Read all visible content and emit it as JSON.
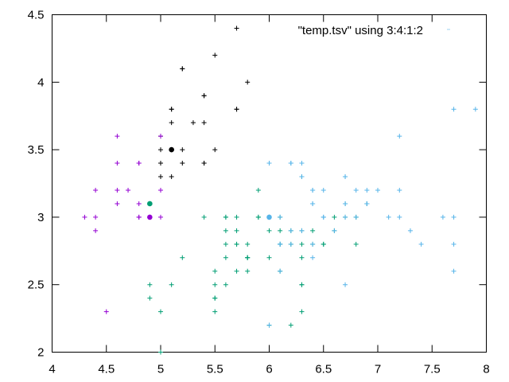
{
  "chart_data": {
    "type": "scatter",
    "xlim": [
      4,
      8
    ],
    "ylim": [
      2,
      4.5
    ],
    "x_ticks": [
      "4",
      "4.5",
      "5",
      "5.5",
      "6",
      "6.5",
      "7",
      "7.5",
      "8"
    ],
    "y_ticks": [
      "2",
      "2.5",
      "3",
      "3.5",
      "4",
      "4.5"
    ],
    "legend": {
      "label": "\"temp.tsv\" using 3:4:1:2",
      "placement": "top-right"
    },
    "grid": false,
    "marker": "plus",
    "series": [
      {
        "color": "#000000",
        "points": [
          [
            5.1,
            3.5
          ],
          [
            5.4,
            3.9
          ],
          [
            5.8,
            4.0
          ],
          [
            5.7,
            4.4
          ],
          [
            5.4,
            3.9
          ],
          [
            5.1,
            3.5
          ],
          [
            5.7,
            3.8
          ],
          [
            5.1,
            3.8
          ],
          [
            5.4,
            3.4
          ],
          [
            5.1,
            3.7
          ],
          [
            5.0,
            3.6
          ],
          [
            5.0,
            3.4
          ],
          [
            5.2,
            3.5
          ],
          [
            5.2,
            3.4
          ],
          [
            5.4,
            3.4
          ],
          [
            5.2,
            4.1
          ],
          [
            5.5,
            4.2
          ],
          [
            5.0,
            3.5
          ],
          [
            5.1,
            3.8
          ],
          [
            5.1,
            3.3
          ],
          [
            5.3,
            3.7
          ],
          [
            5.0,
            3.3
          ],
          [
            5.5,
            3.5
          ],
          [
            5.2,
            4.1
          ],
          [
            5.4,
            3.7
          ],
          [
            5.7,
            3.8
          ],
          [
            5.0,
            3.3
          ]
        ]
      },
      {
        "color": "#9400d3",
        "points": [
          [
            4.9,
            3.0
          ],
          [
            4.7,
            3.2
          ],
          [
            4.6,
            3.1
          ],
          [
            5.0,
            3.6
          ],
          [
            4.6,
            3.4
          ],
          [
            4.4,
            2.9
          ],
          [
            4.9,
            3.1
          ],
          [
            4.8,
            3.4
          ],
          [
            4.8,
            3.0
          ],
          [
            4.3,
            3.0
          ],
          [
            4.6,
            3.2
          ],
          [
            4.4,
            3.2
          ],
          [
            4.8,
            3.1
          ],
          [
            5.0,
            3.2
          ],
          [
            4.4,
            3.0
          ],
          [
            4.5,
            2.3
          ],
          [
            5.0,
            3.0
          ],
          [
            4.8,
            3.0
          ],
          [
            4.6,
            3.6
          ],
          [
            5.0,
            3.2
          ],
          [
            4.8,
            3.4
          ],
          [
            4.9,
            3.1
          ]
        ]
      },
      {
        "color": "#009e73",
        "points": [
          [
            5.5,
            2.3
          ],
          [
            6.5,
            2.8
          ],
          [
            5.7,
            2.8
          ],
          [
            6.3,
            3.3
          ],
          [
            4.9,
            2.4
          ],
          [
            6.6,
            2.9
          ],
          [
            5.2,
            2.7
          ],
          [
            5.0,
            2.0
          ],
          [
            5.9,
            3.0
          ],
          [
            6.0,
            2.2
          ],
          [
            6.1,
            2.9
          ],
          [
            5.6,
            2.9
          ],
          [
            6.7,
            3.1
          ],
          [
            5.6,
            3.0
          ],
          [
            5.8,
            2.7
          ],
          [
            6.2,
            2.2
          ],
          [
            5.6,
            2.5
          ],
          [
            5.9,
            3.2
          ],
          [
            6.1,
            2.8
          ],
          [
            6.3,
            2.5
          ],
          [
            6.1,
            2.8
          ],
          [
            6.4,
            2.9
          ],
          [
            6.6,
            3.0
          ],
          [
            6.8,
            2.8
          ],
          [
            6.7,
            3.0
          ],
          [
            6.0,
            2.9
          ],
          [
            5.7,
            2.6
          ],
          [
            5.5,
            2.4
          ],
          [
            5.5,
            2.4
          ],
          [
            5.8,
            2.7
          ],
          [
            6.0,
            2.7
          ],
          [
            5.4,
            3.0
          ],
          [
            6.0,
            3.4
          ],
          [
            6.7,
            3.1
          ],
          [
            6.3,
            2.3
          ],
          [
            5.6,
            3.0
          ],
          [
            5.5,
            2.5
          ],
          [
            5.5,
            2.6
          ],
          [
            6.1,
            3.0
          ],
          [
            5.8,
            2.6
          ],
          [
            5.0,
            2.3
          ],
          [
            5.6,
            2.7
          ],
          [
            5.7,
            3.0
          ],
          [
            5.7,
            2.9
          ],
          [
            6.2,
            2.9
          ],
          [
            5.1,
            2.5
          ],
          [
            5.7,
            2.8
          ],
          [
            4.9,
            2.5
          ],
          [
            6.3,
            2.7
          ],
          [
            6.5,
            2.8
          ],
          [
            6.3,
            2.9
          ],
          [
            5.8,
            2.7
          ],
          [
            6.0,
            2.2
          ],
          [
            6.9,
            3.1
          ],
          [
            5.6,
            2.8
          ],
          [
            6.3,
            2.5
          ],
          [
            6.2,
            2.8
          ],
          [
            6.4,
            2.8
          ],
          [
            6.8,
            3.0
          ],
          [
            5.8,
            2.8
          ],
          [
            6.3,
            2.8
          ],
          [
            6.1,
            2.6
          ],
          [
            6.0,
            3.0
          ],
          [
            5.9,
            3.0
          ],
          [
            4.9,
            3.1
          ],
          [
            6.0,
            3.0
          ]
        ]
      },
      {
        "color": "#56b4e9",
        "points": [
          [
            7.0,
            3.2
          ],
          [
            6.4,
            3.2
          ],
          [
            6.9,
            3.1
          ],
          [
            6.1,
            2.8
          ],
          [
            6.3,
            3.3
          ],
          [
            6.6,
            2.9
          ],
          [
            6.7,
            3.1
          ],
          [
            6.2,
            3.4
          ],
          [
            6.4,
            3.1
          ],
          [
            6.5,
            3.0
          ],
          [
            7.1,
            3.0
          ],
          [
            7.6,
            3.0
          ],
          [
            7.3,
            2.9
          ],
          [
            6.7,
            2.5
          ],
          [
            7.2,
            3.6
          ],
          [
            6.4,
            2.7
          ],
          [
            6.8,
            3.0
          ],
          [
            6.5,
            3.2
          ],
          [
            7.7,
            3.8
          ],
          [
            7.7,
            2.6
          ],
          [
            6.9,
            3.2
          ],
          [
            7.7,
            2.8
          ],
          [
            6.7,
            3.3
          ],
          [
            7.2,
            3.2
          ],
          [
            7.2,
            3.0
          ],
          [
            7.4,
            2.8
          ],
          [
            7.9,
            3.8
          ],
          [
            7.7,
            3.0
          ],
          [
            6.4,
            3.1
          ],
          [
            6.9,
            3.1
          ],
          [
            6.7,
            3.1
          ],
          [
            6.8,
            3.2
          ],
          [
            6.7,
            3.3
          ],
          [
            6.7,
            3.0
          ],
          [
            6.5,
            3.0
          ],
          [
            6.3,
            3.4
          ],
          [
            6.1,
            3.0
          ],
          [
            6.4,
            2.8
          ],
          [
            6.0,
            3.4
          ],
          [
            6.1,
            2.6
          ],
          [
            6.4,
            3.2
          ],
          [
            6.2,
            2.9
          ],
          [
            6.1,
            2.8
          ],
          [
            6.3,
            2.9
          ],
          [
            6.2,
            2.8
          ],
          [
            6.0,
            2.2
          ],
          [
            6.2,
            3.4
          ]
        ]
      },
      {
        "color": "#56b4e9",
        "style": "dot",
        "points": [
          [
            6.0,
            3.0
          ]
        ]
      },
      {
        "color": "#000000",
        "style": "dot",
        "points": [
          [
            5.1,
            3.5
          ]
        ]
      },
      {
        "color": "#009e73",
        "style": "dot",
        "points": [
          [
            4.9,
            3.1
          ]
        ]
      },
      {
        "color": "#9400d3",
        "style": "dot",
        "points": [
          [
            4.9,
            3.0
          ]
        ]
      }
    ]
  }
}
